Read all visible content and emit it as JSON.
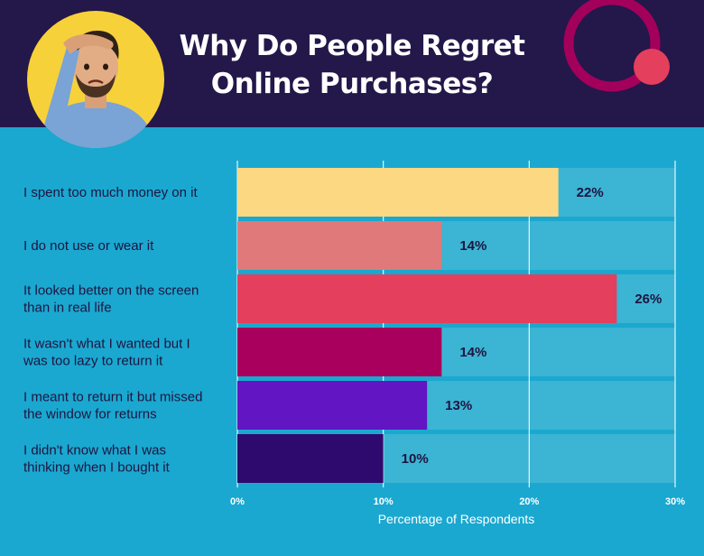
{
  "header": {
    "title_line1": "Why Do People Regret",
    "title_line2": "Online Purchases?",
    "avatar_icon": "frustrated-person-illustration",
    "decoration_icon": "ring-and-dot-decoration"
  },
  "colors": {
    "background": "#1aa8d0",
    "header": "#24174a",
    "track": "#3cb4d3",
    "gridline": "#e6f6fb",
    "label_text": "#1f1440"
  },
  "chart_data": {
    "type": "bar",
    "orientation": "horizontal",
    "categories": [
      [
        "I spent too much money on it"
      ],
      [
        "I do not use or wear it"
      ],
      [
        "It looked better on the screen",
        "than in real life"
      ],
      [
        "It wasn't what I wanted but I",
        "was too lazy to return it"
      ],
      [
        "I meant to return it but missed",
        "the window for returns"
      ],
      [
        "I didn't know what I was",
        "thinking when I bought it"
      ]
    ],
    "values": [
      22,
      14,
      26,
      14,
      13,
      10
    ],
    "value_labels": [
      "22%",
      "14%",
      "26%",
      "14%",
      "13%",
      "10%"
    ],
    "bar_colors": [
      "#fcd882",
      "#e07a7a",
      "#e43f5c",
      "#a8005c",
      "#6215c2",
      "#2e0a6e"
    ],
    "xlim": [
      0,
      30
    ],
    "xticks": [
      0,
      10,
      20,
      30
    ],
    "xtick_labels": [
      "0%",
      "10%",
      "20%",
      "30%"
    ],
    "xlabel": "Percentage of Respondents",
    "grid": true
  }
}
